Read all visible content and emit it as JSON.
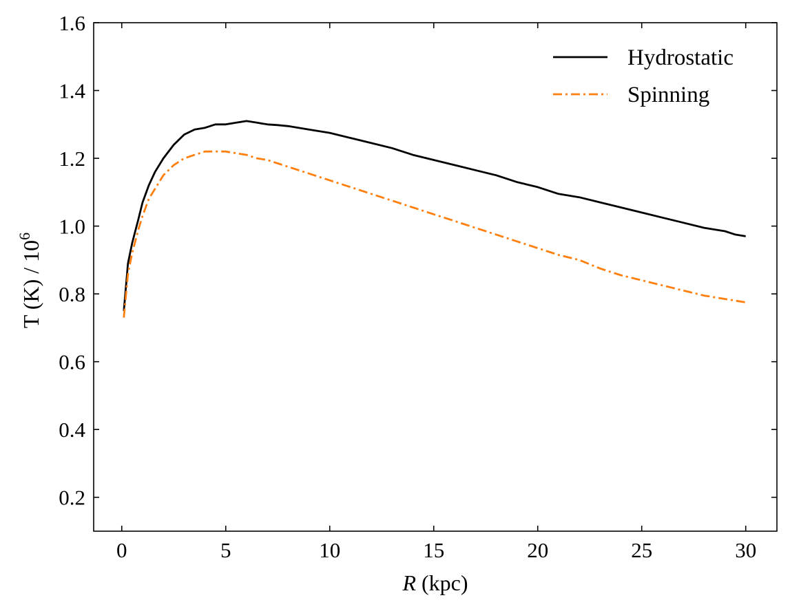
{
  "chart_data": {
    "type": "line",
    "xlabel_italic": "R",
    "xlabel_rest": " (kpc)",
    "ylabel_main": "T (K) / 10",
    "ylabel_exp": "6",
    "xlim": [
      -1.35,
      31.5
    ],
    "ylim": [
      0.1,
      1.6
    ],
    "xticks": [
      0,
      5,
      10,
      15,
      20,
      25,
      30
    ],
    "xtick_labels": [
      "0",
      "5",
      "10",
      "15",
      "20",
      "25",
      "30"
    ],
    "yticks": [
      0.2,
      0.4,
      0.6,
      0.8,
      1.0,
      1.2,
      1.4,
      1.6
    ],
    "ytick_labels": [
      "0.2",
      "0.4",
      "0.6",
      "0.8",
      "1.0",
      "1.2",
      "1.4",
      "1.6"
    ],
    "legend_position": "top-right",
    "series": [
      {
        "name": "Hydrostatic",
        "color": "#000000",
        "style": "solid",
        "x": [
          0.1,
          0.3,
          0.5,
          0.8,
          1.0,
          1.3,
          1.6,
          2.0,
          2.5,
          3.0,
          3.5,
          4.0,
          4.5,
          5.0,
          5.5,
          6.0,
          6.5,
          7.0,
          7.5,
          8.0,
          9.0,
          10.0,
          11.0,
          12.0,
          13.0,
          14.0,
          15.0,
          16.0,
          17.0,
          18.0,
          19.0,
          20.0,
          21.0,
          22.0,
          23.0,
          24.0,
          25.0,
          26.0,
          27.0,
          28.0,
          29.0,
          29.5,
          30.0
        ],
        "y": [
          0.75,
          0.89,
          0.95,
          1.02,
          1.07,
          1.12,
          1.16,
          1.2,
          1.24,
          1.27,
          1.285,
          1.29,
          1.3,
          1.3,
          1.305,
          1.31,
          1.305,
          1.3,
          1.298,
          1.295,
          1.285,
          1.275,
          1.26,
          1.245,
          1.23,
          1.21,
          1.195,
          1.18,
          1.165,
          1.15,
          1.13,
          1.115,
          1.095,
          1.085,
          1.07,
          1.055,
          1.04,
          1.025,
          1.01,
          0.995,
          0.985,
          0.975,
          0.97
        ]
      },
      {
        "name": "Spinning",
        "color": "#ff7f0e",
        "style": "dashdot",
        "x": [
          0.1,
          0.3,
          0.5,
          0.8,
          1.0,
          1.3,
          1.6,
          2.0,
          2.5,
          3.0,
          3.5,
          4.0,
          4.5,
          5.0,
          5.5,
          6.0,
          6.5,
          7.0,
          7.5,
          8.0,
          9.0,
          10.0,
          11.0,
          12.0,
          13.0,
          14.0,
          15.0,
          16.0,
          17.0,
          18.0,
          19.0,
          20.0,
          21.0,
          22.0,
          23.0,
          24.0,
          25.0,
          26.0,
          27.0,
          28.0,
          29.0,
          29.5,
          30.0
        ],
        "y": [
          0.73,
          0.86,
          0.92,
          0.99,
          1.03,
          1.08,
          1.11,
          1.15,
          1.18,
          1.2,
          1.21,
          1.22,
          1.22,
          1.22,
          1.215,
          1.21,
          1.2,
          1.195,
          1.185,
          1.175,
          1.155,
          1.135,
          1.115,
          1.095,
          1.075,
          1.055,
          1.035,
          1.015,
          0.995,
          0.975,
          0.955,
          0.935,
          0.915,
          0.9,
          0.875,
          0.855,
          0.84,
          0.825,
          0.81,
          0.795,
          0.785,
          0.78,
          0.775
        ]
      }
    ]
  }
}
